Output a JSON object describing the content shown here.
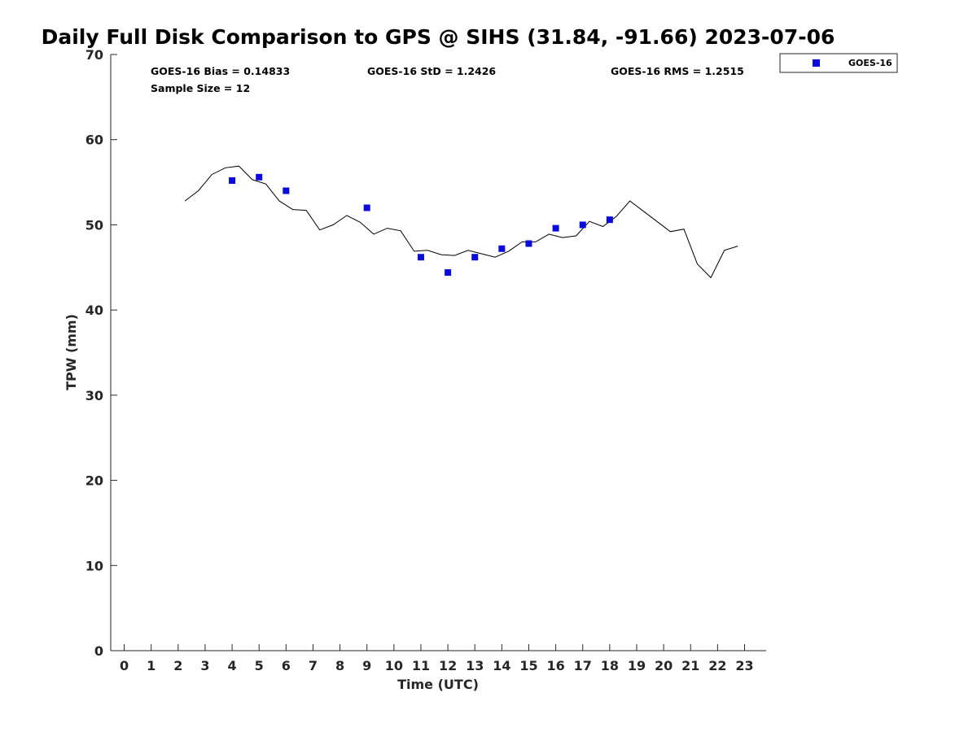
{
  "chart_data": {
    "type": "scatter",
    "title": "Daily Full Disk Comparison to GPS @ SIHS (31.84, -91.66) 2023-07-06",
    "xlabel": "Time (UTC)",
    "ylabel": "TPW (mm)",
    "xlim": [
      -0.5,
      23.8
    ],
    "ylim": [
      0,
      70
    ],
    "xticks": [
      "0",
      "1",
      "2",
      "3",
      "4",
      "5",
      "6",
      "7",
      "8",
      "9",
      "10",
      "11",
      "12",
      "13",
      "14",
      "15",
      "16",
      "17",
      "18",
      "19",
      "20",
      "21",
      "22",
      "23"
    ],
    "yticks": [
      "0",
      "10",
      "20",
      "30",
      "40",
      "50",
      "60",
      "70"
    ],
    "grid": false,
    "legend_position": "top-right, outside",
    "colors": {
      "goes16": "#0a0adc",
      "gps_line": "#000000"
    },
    "stats": {
      "bias": "GOES-16 Bias = 0.14833",
      "std": "GOES-16 StD = 1.2426",
      "rms": "GOES-16 RMS = 1.2515",
      "sample_size": "Sample Size = 12"
    },
    "series": [
      {
        "name": "GOES-16",
        "kind": "scatter",
        "marker": "square",
        "x": [
          4,
          5,
          6,
          9,
          11,
          12,
          13,
          14,
          15,
          16,
          17,
          18
        ],
        "y": [
          55.2,
          55.6,
          54.0,
          52.0,
          46.2,
          44.4,
          46.2,
          47.2,
          47.8,
          49.6,
          50.0,
          50.6
        ]
      },
      {
        "kind": "line",
        "x": [
          2.25,
          2.75,
          3.25,
          3.75,
          4.25,
          4.75,
          5.25,
          5.75,
          6.25,
          6.75,
          7.25,
          7.75,
          8.25,
          8.75,
          9.25,
          9.75,
          10.25,
          10.75,
          11.25,
          11.75,
          12.25,
          12.75,
          13.25,
          13.75,
          14.25,
          14.75,
          15.25,
          15.75,
          16.25,
          16.75,
          17.25,
          17.75,
          18.25,
          18.75,
          19.25,
          19.75,
          20.25,
          20.75,
          21.25,
          21.75,
          22.25,
          22.75
        ],
        "y": [
          52.8,
          54.0,
          55.9,
          56.7,
          56.9,
          55.3,
          54.8,
          52.8,
          51.8,
          51.7,
          49.4,
          50.0,
          51.1,
          50.3,
          48.9,
          49.6,
          49.3,
          46.9,
          47.0,
          46.5,
          46.4,
          47.0,
          46.6,
          46.2,
          46.9,
          48.0,
          48.0,
          48.9,
          48.5,
          48.7,
          50.4,
          49.8,
          51.0,
          52.8,
          51.6,
          50.4,
          49.2,
          49.5,
          45.4,
          43.8,
          47.0,
          47.5
        ]
      }
    ]
  }
}
